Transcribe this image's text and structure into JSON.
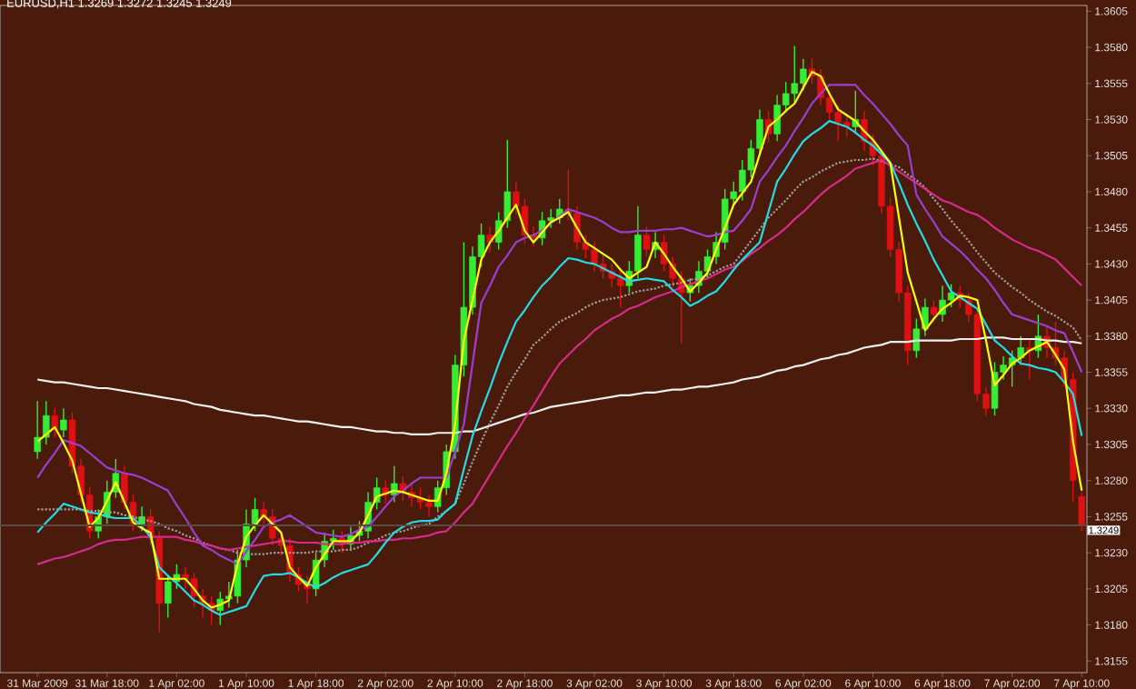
{
  "chart_data": {
    "type": "candlestick",
    "title": "EURUSD,H1  1.3269 1.3272 1.3245 1.3249",
    "categories": [
      "31 Mar 2009",
      null,
      null,
      null,
      null,
      null,
      null,
      null,
      "31 Mar 18:00",
      null,
      null,
      null,
      null,
      null,
      null,
      null,
      "1 Apr 02:00",
      null,
      null,
      null,
      null,
      null,
      null,
      null,
      "1 Apr 10:00",
      null,
      null,
      null,
      null,
      null,
      null,
      null,
      "1 Apr 18:00",
      null,
      null,
      null,
      null,
      null,
      null,
      null,
      "2 Apr 02:00",
      null,
      null,
      null,
      null,
      null,
      null,
      null,
      "2 Apr 10:00",
      null,
      null,
      null,
      null,
      null,
      null,
      null,
      "2 Apr 18:00",
      null,
      null,
      null,
      null,
      null,
      null,
      null,
      "3 Apr 02:00",
      null,
      null,
      null,
      null,
      null,
      null,
      null,
      "3 Apr 10:00",
      null,
      null,
      null,
      null,
      null,
      null,
      null,
      "3 Apr 18:00",
      null,
      null,
      null,
      null,
      null,
      null,
      null,
      "6 Apr 02:00",
      null,
      null,
      null,
      null,
      null,
      null,
      null,
      "6 Apr 10:00",
      null,
      null,
      null,
      null,
      null,
      null,
      null,
      "6 Apr 18:00",
      null,
      null,
      null,
      null,
      null,
      null,
      null,
      "7 Apr 02:00",
      null,
      null,
      null,
      null,
      null,
      null,
      null,
      "7 Apr 10:00"
    ],
    "ohlc": [
      [
        1.33,
        1.3335,
        1.3295,
        1.331
      ],
      [
        1.331,
        1.3335,
        1.3305,
        1.3325
      ],
      [
        1.3325,
        1.333,
        1.331,
        1.3315
      ],
      [
        1.3315,
        1.333,
        1.331,
        1.3322
      ],
      [
        1.3322,
        1.3327,
        1.3285,
        1.329
      ],
      [
        1.329,
        1.3295,
        1.3265,
        1.327
      ],
      [
        1.327,
        1.3275,
        1.324,
        1.3245
      ],
      [
        1.3245,
        1.326,
        1.324,
        1.3255
      ],
      [
        1.3255,
        1.328,
        1.325,
        1.3272
      ],
      [
        1.3272,
        1.3295,
        1.3268,
        1.3285
      ],
      [
        1.3285,
        1.329,
        1.326,
        1.3265
      ],
      [
        1.3265,
        1.327,
        1.3245,
        1.325
      ],
      [
        1.325,
        1.3262,
        1.3245,
        1.3255
      ],
      [
        1.3255,
        1.326,
        1.3235,
        1.324
      ],
      [
        1.324,
        1.3245,
        1.3175,
        1.3195
      ],
      [
        1.3195,
        1.3215,
        1.3185,
        1.321
      ],
      [
        1.321,
        1.3222,
        1.3205,
        1.3215
      ],
      [
        1.3215,
        1.322,
        1.3205,
        1.3212
      ],
      [
        1.3212,
        1.3216,
        1.3192,
        1.32
      ],
      [
        1.32,
        1.3205,
        1.3185,
        1.3195
      ],
      [
        1.3195,
        1.32,
        1.318,
        1.319
      ],
      [
        1.319,
        1.3203,
        1.318,
        1.3198
      ],
      [
        1.3198,
        1.321,
        1.3192,
        1.32
      ],
      [
        1.32,
        1.3232,
        1.3195,
        1.3225
      ],
      [
        1.3225,
        1.326,
        1.322,
        1.325
      ],
      [
        1.325,
        1.3268,
        1.3245,
        1.326
      ],
      [
        1.326,
        1.3265,
        1.325,
        1.3255
      ],
      [
        1.3255,
        1.326,
        1.3235,
        1.324
      ],
      [
        1.324,
        1.3245,
        1.3228,
        1.3235
      ],
      [
        1.3235,
        1.324,
        1.321,
        1.3215
      ],
      [
        1.3215,
        1.322,
        1.3203,
        1.3208
      ],
      [
        1.3208,
        1.3214,
        1.3195,
        1.3205
      ],
      [
        1.3205,
        1.323,
        1.32,
        1.3225
      ],
      [
        1.3225,
        1.3244,
        1.322,
        1.3238
      ],
      [
        1.3238,
        1.3246,
        1.3232,
        1.324
      ],
      [
        1.324,
        1.3245,
        1.323,
        1.3236
      ],
      [
        1.3236,
        1.3248,
        1.3232,
        1.3242
      ],
      [
        1.3242,
        1.3252,
        1.3238,
        1.3245
      ],
      [
        1.3245,
        1.3272,
        1.324,
        1.3265
      ],
      [
        1.3265,
        1.3282,
        1.326,
        1.3275
      ],
      [
        1.3275,
        1.328,
        1.3264,
        1.327
      ],
      [
        1.327,
        1.329,
        1.3265,
        1.3278
      ],
      [
        1.3278,
        1.3283,
        1.3266,
        1.3272
      ],
      [
        1.3272,
        1.3278,
        1.3262,
        1.3268
      ],
      [
        1.3268,
        1.3275,
        1.326,
        1.3265
      ],
      [
        1.3265,
        1.327,
        1.3255,
        1.3262
      ],
      [
        1.3262,
        1.328,
        1.3258,
        1.3275
      ],
      [
        1.3275,
        1.3305,
        1.327,
        1.33
      ],
      [
        1.33,
        1.3367,
        1.3295,
        1.336
      ],
      [
        1.336,
        1.3445,
        1.3352,
        1.34
      ],
      [
        1.34,
        1.3442,
        1.3395,
        1.3435
      ],
      [
        1.3435,
        1.3458,
        1.3428,
        1.345
      ],
      [
        1.345,
        1.3456,
        1.3438,
        1.3445
      ],
      [
        1.3445,
        1.3466,
        1.344,
        1.346
      ],
      [
        1.346,
        1.3516,
        1.3455,
        1.348
      ],
      [
        1.348,
        1.3487,
        1.3464,
        1.347
      ],
      [
        1.347,
        1.3475,
        1.3444,
        1.345
      ],
      [
        1.345,
        1.3456,
        1.3442,
        1.3448
      ],
      [
        1.3448,
        1.3466,
        1.3443,
        1.346
      ],
      [
        1.346,
        1.3468,
        1.3455,
        1.3462
      ],
      [
        1.3462,
        1.3475,
        1.3458,
        1.3468
      ],
      [
        1.3468,
        1.3495,
        1.346,
        1.3465
      ],
      [
        1.3465,
        1.347,
        1.344,
        1.3445
      ],
      [
        1.3445,
        1.345,
        1.3434,
        1.344
      ],
      [
        1.344,
        1.3445,
        1.3425,
        1.343
      ],
      [
        1.343,
        1.3436,
        1.342,
        1.3425
      ],
      [
        1.3425,
        1.343,
        1.3414,
        1.342
      ],
      [
        1.342,
        1.3425,
        1.34,
        1.3415
      ],
      [
        1.3415,
        1.3432,
        1.341,
        1.3425
      ],
      [
        1.3425,
        1.347,
        1.342,
        1.345
      ],
      [
        1.345,
        1.3456,
        1.3435,
        1.344
      ],
      [
        1.344,
        1.3452,
        1.3434,
        1.3445
      ],
      [
        1.3445,
        1.345,
        1.3425,
        1.343
      ],
      [
        1.343,
        1.3435,
        1.3414,
        1.342
      ],
      [
        1.342,
        1.3425,
        1.3375,
        1.341
      ],
      [
        1.341,
        1.342,
        1.3404,
        1.3415
      ],
      [
        1.3415,
        1.3432,
        1.341,
        1.3425
      ],
      [
        1.3425,
        1.344,
        1.342,
        1.3435
      ],
      [
        1.3435,
        1.3452,
        1.343,
        1.3445
      ],
      [
        1.3445,
        1.3482,
        1.344,
        1.3475
      ],
      [
        1.3475,
        1.3487,
        1.347,
        1.348
      ],
      [
        1.348,
        1.3502,
        1.3474,
        1.3495
      ],
      [
        1.3495,
        1.3516,
        1.349,
        1.351
      ],
      [
        1.351,
        1.3537,
        1.3505,
        1.353
      ],
      [
        1.353,
        1.3536,
        1.3514,
        1.352
      ],
      [
        1.352,
        1.3547,
        1.3515,
        1.354
      ],
      [
        1.354,
        1.3556,
        1.3535,
        1.3548
      ],
      [
        1.3548,
        1.3581,
        1.3542,
        1.3555
      ],
      [
        1.3555,
        1.3572,
        1.355,
        1.3565
      ],
      [
        1.3565,
        1.3572,
        1.3555,
        1.356
      ],
      [
        1.356,
        1.3565,
        1.354,
        1.3545
      ],
      [
        1.3545,
        1.355,
        1.353,
        1.3535
      ],
      [
        1.3535,
        1.354,
        1.3515,
        1.3528
      ],
      [
        1.3528,
        1.3534,
        1.3518,
        1.3525
      ],
      [
        1.3525,
        1.355,
        1.352,
        1.353
      ],
      [
        1.353,
        1.3536,
        1.3508,
        1.3515
      ],
      [
        1.3515,
        1.352,
        1.3498,
        1.3505
      ],
      [
        1.3505,
        1.351,
        1.3465,
        1.347
      ],
      [
        1.347,
        1.3476,
        1.3435,
        1.344
      ],
      [
        1.344,
        1.3445,
        1.3404,
        1.341
      ],
      [
        1.341,
        1.3415,
        1.336,
        1.337
      ],
      [
        1.337,
        1.3392,
        1.3365,
        1.3385
      ],
      [
        1.3385,
        1.3406,
        1.338,
        1.34
      ],
      [
        1.34,
        1.3405,
        1.339,
        1.3395
      ],
      [
        1.3395,
        1.3415,
        1.339,
        1.3405
      ],
      [
        1.3405,
        1.3416,
        1.34,
        1.341
      ],
      [
        1.341,
        1.3415,
        1.34,
        1.3405
      ],
      [
        1.3405,
        1.341,
        1.339,
        1.3395
      ],
      [
        1.3395,
        1.34,
        1.3335,
        1.334
      ],
      [
        1.334,
        1.3345,
        1.3325,
        1.333
      ],
      [
        1.333,
        1.3362,
        1.3325,
        1.3355
      ],
      [
        1.3355,
        1.3366,
        1.335,
        1.336
      ],
      [
        1.336,
        1.337,
        1.3345,
        1.3365
      ],
      [
        1.3365,
        1.338,
        1.336,
        1.3372
      ],
      [
        1.3372,
        1.3378,
        1.335,
        1.337
      ],
      [
        1.337,
        1.3395,
        1.3365,
        1.338
      ],
      [
        1.338,
        1.3386,
        1.3365,
        1.3372
      ],
      [
        1.3372,
        1.339,
        1.336,
        1.3365
      ],
      [
        1.3365,
        1.337,
        1.3345,
        1.335
      ],
      [
        1.335,
        1.3355,
        1.3265,
        1.328
      ],
      [
        1.3269,
        1.3272,
        1.3245,
        1.3249
      ]
    ],
    "colors": [
      "#33ee33",
      "#33ee33",
      "#dd1111",
      "#33ee33",
      "#dd1111",
      "#dd1111",
      "#dd1111",
      "#33ee33",
      "#33ee33",
      "#33ee33",
      "#dd1111",
      "#dd1111",
      "#33ee33",
      "#dd1111",
      "#dd1111",
      "#33ee33",
      "#33ee33",
      "#dd1111",
      "#dd1111",
      "#dd1111",
      "#dd1111",
      "#33ee33",
      "#33ee33",
      "#33ee33",
      "#33ee33",
      "#33ee33",
      "#dd1111",
      "#dd1111",
      "#dd1111",
      "#dd1111",
      "#dd1111",
      "#dd1111",
      "#33ee33",
      "#33ee33",
      "#33ee33",
      "#dd1111",
      "#33ee33",
      "#33ee33",
      "#33ee33",
      "#33ee33",
      "#dd1111",
      "#33ee33",
      "#dd1111",
      "#dd1111",
      "#dd1111",
      "#dd1111",
      "#33ee33",
      "#33ee33",
      "#33ee33",
      "#33ee33",
      "#33ee33",
      "#33ee33",
      "#dd1111",
      "#33ee33",
      "#33ee33",
      "#dd1111",
      "#dd1111",
      "#dd1111",
      "#33ee33",
      "#33ee33",
      "#33ee33",
      "#dd1111",
      "#dd1111",
      "#dd1111",
      "#dd1111",
      "#dd1111",
      "#dd1111",
      "#dd1111",
      "#33ee33",
      "#33ee33",
      "#dd1111",
      "#33ee33",
      "#dd1111",
      "#dd1111",
      "#dd1111",
      "#33ee33",
      "#33ee33",
      "#33ee33",
      "#33ee33",
      "#33ee33",
      "#33ee33",
      "#33ee33",
      "#33ee33",
      "#33ee33",
      "#dd1111",
      "#33ee33",
      "#33ee33",
      "#33ee33",
      "#33ee33",
      "#dd1111",
      "#dd1111",
      "#dd1111",
      "#dd1111",
      "#dd1111",
      "#33ee33",
      "#dd1111",
      "#dd1111",
      "#dd1111",
      "#dd1111",
      "#dd1111",
      "#dd1111",
      "#33ee33",
      "#33ee33",
      "#dd1111",
      "#33ee33",
      "#33ee33",
      "#dd1111",
      "#dd1111",
      "#dd1111",
      "#dd1111",
      "#33ee33",
      "#33ee33",
      "#33ee33",
      "#33ee33",
      "#dd1111",
      "#33ee33",
      "#dd1111",
      "#dd1111",
      "#dd1111",
      "#dd1111",
      "#dd1111"
    ],
    "series": [
      {
        "type": "line",
        "color": "#f0f0f0",
        "values": [
          1.335,
          1.3349,
          1.3348,
          1.3348,
          1.3347,
          1.3346,
          1.3345,
          1.3344,
          1.3344,
          1.3343,
          1.3342,
          1.3341,
          1.334,
          1.3339,
          1.3338,
          1.3337,
          1.3336,
          1.3335,
          1.3333,
          1.3332,
          1.3331,
          1.3329,
          1.3328,
          1.3327,
          1.3326,
          1.3325,
          1.3325,
          1.3324,
          1.3323,
          1.3322,
          1.3321,
          1.3321,
          1.332,
          1.3319,
          1.3318,
          1.3317,
          1.3317,
          1.3316,
          1.3315,
          1.3314,
          1.3314,
          1.3313,
          1.3313,
          1.3312,
          1.3312,
          1.3312,
          1.3313,
          1.3313,
          1.3313,
          1.3314,
          1.3314,
          1.3316,
          1.3318,
          1.332,
          1.3322,
          1.3324,
          1.3326,
          1.3327,
          1.3329,
          1.3331,
          1.3332,
          1.3333,
          1.3334,
          1.3335,
          1.3336,
          1.3337,
          1.3338,
          1.3339,
          1.3339,
          1.334,
          1.3341,
          1.3341,
          1.3342,
          1.3343,
          1.3343,
          1.3344,
          1.3345,
          1.3345,
          1.3346,
          1.3347,
          1.3348,
          1.335,
          1.3351,
          1.3352,
          1.3354,
          1.3356,
          1.3357,
          1.3359,
          1.336,
          1.3362,
          1.3364,
          1.3365,
          1.3367,
          1.3368,
          1.337,
          1.3372,
          1.3373,
          1.3374,
          1.3376,
          1.3376,
          1.3376,
          1.3377,
          1.3377,
          1.3377,
          1.3377,
          1.3377,
          1.3378,
          1.3378,
          1.3378,
          1.3379,
          1.3379,
          1.3379,
          1.3378,
          1.3378,
          1.3378,
          1.3378,
          1.3377,
          1.3377,
          1.3376,
          1.3376,
          1.3375
        ]
      },
      {
        "type": "line",
        "color": "#a0a0a0",
        "line_style": "dotted",
        "values": [
          1.326,
          1.326,
          1.326,
          1.326,
          1.326,
          1.326,
          1.3259,
          1.3259,
          1.3258,
          1.3258,
          1.3256,
          1.3255,
          1.3253,
          1.3252,
          1.325,
          1.3247,
          1.3245,
          1.3242,
          1.324,
          1.3237,
          1.3235,
          1.3233,
          1.3232,
          1.323,
          1.3229,
          1.3229,
          1.3229,
          1.323,
          1.323,
          1.323,
          1.323,
          1.323,
          1.3231,
          1.3231,
          1.3231,
          1.3232,
          1.3232,
          1.3234,
          1.3237,
          1.3239,
          1.3242,
          1.3244,
          1.3245,
          1.3247,
          1.3249,
          1.325,
          1.3255,
          1.3259,
          1.3264,
          1.3278,
          1.3293,
          1.3307,
          1.332,
          1.3332,
          1.3345,
          1.3355,
          1.3364,
          1.3374,
          1.3379,
          1.3385,
          1.339,
          1.3393,
          1.3396,
          1.34,
          1.3403,
          1.3405,
          1.3406,
          1.3407,
          1.3409,
          1.3411,
          1.3412,
          1.3413,
          1.3415,
          1.3416,
          1.3417,
          1.3419,
          1.342,
          1.3422,
          1.3425,
          1.3428,
          1.343,
          1.3438,
          1.3446,
          1.3454,
          1.3462,
          1.3468,
          1.3474,
          1.3481,
          1.3487,
          1.349,
          1.3494,
          1.3497,
          1.35,
          1.3501,
          1.3502,
          1.3502,
          1.3503,
          1.3501,
          1.3499,
          1.3497,
          1.3492,
          1.3488,
          1.3483,
          1.3475,
          1.3468,
          1.346,
          1.3453,
          1.3446,
          1.3438,
          1.3431,
          1.3424,
          1.3419,
          1.3414,
          1.341,
          1.3405,
          1.3401,
          1.3397,
          1.3394,
          1.339,
          1.3386,
          1.3377
        ]
      },
      {
        "type": "line",
        "color": "#d42b8c",
        "values": [
          1.3222,
          1.3224,
          1.3226,
          1.3227,
          1.3229,
          1.3231,
          1.3233,
          1.3236,
          1.3238,
          1.3239,
          1.3239,
          1.324,
          1.3241,
          1.3241,
          1.3241,
          1.3241,
          1.3241,
          1.3239,
          1.3238,
          1.3236,
          1.3235,
          1.3233,
          1.3232,
          1.3233,
          1.3234,
          1.3235,
          1.3236,
          1.3237,
          1.3238,
          1.3238,
          1.3237,
          1.3237,
          1.3237,
          1.3236,
          1.3236,
          1.3236,
          1.3237,
          1.3237,
          1.3238,
          1.3238,
          1.3239,
          1.3239,
          1.324,
          1.324,
          1.3241,
          1.3242,
          1.3244,
          1.3245,
          1.3251,
          1.3258,
          1.3264,
          1.3274,
          1.3284,
          1.3294,
          1.3304,
          1.3313,
          1.3323,
          1.3332,
          1.3342,
          1.3352,
          1.3361,
          1.3367,
          1.3373,
          1.3378,
          1.3384,
          1.3388,
          1.3392,
          1.3395,
          1.3399,
          1.3401,
          1.3404,
          1.3407,
          1.3409,
          1.3411,
          1.3414,
          1.3416,
          1.3418,
          1.342,
          1.3423,
          1.3426,
          1.3428,
          1.3432,
          1.3437,
          1.3441,
          1.3446,
          1.345,
          1.3455,
          1.3461,
          1.3466,
          1.3472,
          1.3478,
          1.3483,
          1.3487,
          1.3491,
          1.3496,
          1.3498,
          1.35,
          1.3502,
          1.3498,
          1.3494,
          1.349,
          1.3486,
          1.3482,
          1.3478,
          1.3474,
          1.3472,
          1.3469,
          1.3466,
          1.3464,
          1.346,
          1.3455,
          1.3451,
          1.3447,
          1.3444,
          1.3441,
          1.3439,
          1.3436,
          1.3433,
          1.3427,
          1.3421,
          1.3415
        ]
      },
      {
        "type": "line",
        "color": "#9b3fd0",
        "values": [
          1.3282,
          1.3291,
          1.3299,
          1.3308,
          1.3306,
          1.3304,
          1.3299,
          1.3294,
          1.3289,
          1.3287,
          1.3285,
          1.3284,
          1.3282,
          1.3279,
          1.3276,
          1.3273,
          1.3263,
          1.3254,
          1.3244,
          1.3235,
          1.3232,
          1.3228,
          1.3225,
          1.3222,
          1.3231,
          1.3239,
          1.3248,
          1.3251,
          1.3253,
          1.3256,
          1.3252,
          1.3248,
          1.3244,
          1.3243,
          1.3242,
          1.3241,
          1.3243,
          1.3246,
          1.3248,
          1.3255,
          1.3262,
          1.3269,
          1.3273,
          1.3278,
          1.3282,
          1.3282,
          1.3282,
          1.3282,
          1.33,
          1.3319,
          1.3361,
          1.3403,
          1.3415,
          1.3428,
          1.3436,
          1.3445,
          1.3448,
          1.345,
          1.3453,
          1.3458,
          1.3463,
          1.3468,
          1.3466,
          1.3464,
          1.3462,
          1.3459,
          1.3455,
          1.3452,
          1.3452,
          1.3453,
          1.3453,
          1.3453,
          1.3454,
          1.3454,
          1.3455,
          1.3453,
          1.3451,
          1.3449,
          1.345,
          1.3452,
          1.3453,
          1.346,
          1.3468,
          1.3487,
          1.3495,
          1.3504,
          1.3512,
          1.3522,
          1.3531,
          1.3541,
          1.3548,
          1.3554,
          1.3554,
          1.3554,
          1.3554,
          1.3547,
          1.3541,
          1.3534,
          1.3527,
          1.3519,
          1.3512,
          1.3478,
          1.3468,
          1.3459,
          1.3449,
          1.3444,
          1.3439,
          1.3433,
          1.3426,
          1.342,
          1.3412,
          1.3403,
          1.3395,
          1.3393,
          1.3391,
          1.3389,
          1.3387,
          1.3384,
          1.3382,
          1.3369,
          1.3355
        ]
      },
      {
        "type": "line",
        "color": "#22dde8",
        "values": [
          1.3244,
          1.3251,
          1.3257,
          1.3264,
          1.3262,
          1.326,
          1.3258,
          1.3257,
          1.3255,
          1.3254,
          1.3254,
          1.3254,
          1.3248,
          1.3241,
          1.322,
          1.3214,
          1.3209,
          1.3203,
          1.3197,
          1.3194,
          1.319,
          1.3187,
          1.3189,
          1.3191,
          1.3193,
          1.3204,
          1.3214,
          1.3215,
          1.3215,
          1.3216,
          1.3213,
          1.3209,
          1.3206,
          1.3209,
          1.3213,
          1.3216,
          1.3218,
          1.322,
          1.3222,
          1.3229,
          1.3237,
          1.3244,
          1.3248,
          1.3251,
          1.3252,
          1.3252,
          1.3253,
          1.3259,
          1.3264,
          1.3288,
          1.3311,
          1.3328,
          1.3344,
          1.3361,
          1.3376,
          1.339,
          1.3398,
          1.3407,
          1.3415,
          1.3421,
          1.3428,
          1.3434,
          1.3433,
          1.3431,
          1.343,
          1.3427,
          1.3424,
          1.3421,
          1.3418,
          1.3419,
          1.342,
          1.3419,
          1.3418,
          1.3412,
          1.3407,
          1.3401,
          1.3404,
          1.3408,
          1.3411,
          1.3418,
          1.3426,
          1.3433,
          1.3439,
          1.3445,
          1.3466,
          1.3487,
          1.3496,
          1.3506,
          1.3515,
          1.352,
          1.3524,
          1.3529,
          1.3527,
          1.3525,
          1.3521,
          1.3516,
          1.3512,
          1.3506,
          1.35,
          1.3486,
          1.3471,
          1.3458,
          1.3446,
          1.3433,
          1.3422,
          1.3411,
          1.3407,
          1.3403,
          1.3399,
          1.3388,
          1.3377,
          1.3372,
          1.3366,
          1.3361,
          1.336,
          1.3358,
          1.3357,
          1.3355,
          1.3348,
          1.334,
          1.3311
        ]
      },
      {
        "type": "line",
        "color": "#ffff00",
        "values": [
          1.3307,
          1.3312,
          1.3317,
          1.3306,
          1.3294,
          1.3271,
          1.3248,
          1.3254,
          1.3266,
          1.3279,
          1.3265,
          1.3251,
          1.3247,
          1.3244,
          1.3212,
          1.3212,
          1.3212,
          1.3212,
          1.3205,
          1.3197,
          1.3192,
          1.3194,
          1.3197,
          1.3222,
          1.3241,
          1.3249,
          1.3256,
          1.325,
          1.3244,
          1.322,
          1.3213,
          1.3207,
          1.322,
          1.3229,
          1.3238,
          1.3238,
          1.3238,
          1.3244,
          1.3256,
          1.3269,
          1.3271,
          1.3273,
          1.3272,
          1.327,
          1.3268,
          1.3266,
          1.3266,
          1.3285,
          1.3319,
          1.3377,
          1.3405,
          1.3433,
          1.3445,
          1.3453,
          1.3462,
          1.3471,
          1.3453,
          1.3445,
          1.3452,
          1.3459,
          1.3462,
          1.3466,
          1.3455,
          1.3445,
          1.3441,
          1.3437,
          1.3433,
          1.3426,
          1.342,
          1.3424,
          1.3428,
          1.3445,
          1.3437,
          1.3428,
          1.342,
          1.3411,
          1.3417,
          1.3424,
          1.344,
          1.3455,
          1.3471,
          1.3479,
          1.3487,
          1.3506,
          1.3525,
          1.353,
          1.3536,
          1.3541,
          1.3552,
          1.3563,
          1.356,
          1.3548,
          1.3537,
          1.3533,
          1.3529,
          1.3522,
          1.3516,
          1.3508,
          1.35,
          1.3462,
          1.3424,
          1.3404,
          1.3384,
          1.3392,
          1.3399,
          1.3403,
          1.3408,
          1.3407,
          1.3405,
          1.3377,
          1.3346,
          1.3353,
          1.3361,
          1.3365,
          1.337,
          1.3373,
          1.3376,
          1.3367,
          1.3357,
          1.3307,
          1.3273
        ]
      }
    ],
    "ref_lines": [
      {
        "axis": "y",
        "value": 1.3249,
        "label": "1.3249",
        "color": "#5a4a44"
      }
    ],
    "ylim": [
      1.3147,
      1.3609
    ],
    "yticks": [
      1.3155,
      {
        "value": 1.318,
        "label": "1.3180"
      },
      1.3205,
      {
        "value": 1.323,
        "label": "1.3230"
      },
      1.3255,
      {
        "value": 1.328,
        "label": "1.3280"
      },
      1.3305,
      {
        "value": 1.333,
        "label": "1.3330"
      },
      1.3355,
      {
        "value": 1.338,
        "label": "1.3380"
      },
      1.3405,
      {
        "value": 1.343,
        "label": "1.3430"
      },
      1.3455,
      {
        "value": 1.348,
        "label": "1.3480"
      },
      1.3505,
      {
        "value": 1.353,
        "label": "1.3530"
      },
      1.3555,
      {
        "value": 1.358,
        "label": "1.3580"
      },
      1.3605
    ]
  }
}
